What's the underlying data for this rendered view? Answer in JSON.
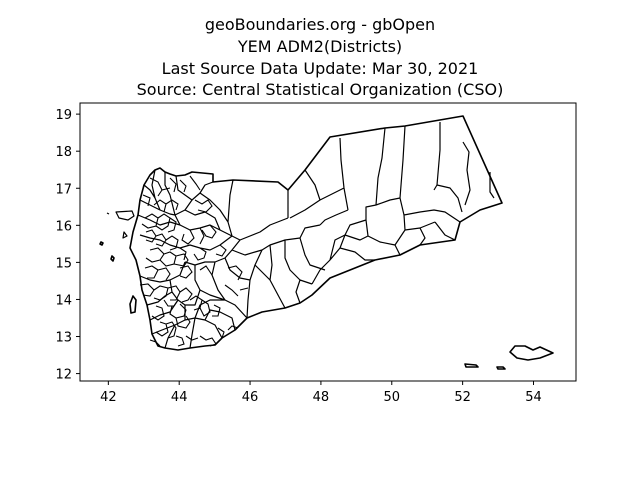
{
  "chart_data": {
    "type": "map",
    "title_lines": [
      "geoBoundaries.org - gbOpen",
      "YEM ADM2(Districts)",
      "Last Source Data Update: Mar 30, 2021",
      "Source: Central Statistical Organization (CSO)"
    ],
    "xlabel": "",
    "ylabel": "",
    "x_ticks": [
      42,
      44,
      46,
      48,
      50,
      52,
      54
    ],
    "y_ticks": [
      12,
      13,
      14,
      15,
      16,
      17,
      18,
      19
    ],
    "xlim": [
      41.2,
      55.2
    ],
    "ylim": [
      11.8,
      19.3
    ],
    "grid": false,
    "colors": {
      "stroke": "#000000",
      "fill": "none",
      "background": "#ffffff"
    }
  }
}
